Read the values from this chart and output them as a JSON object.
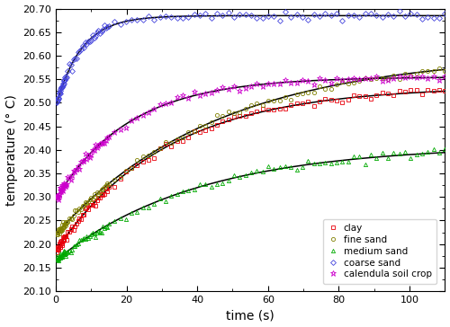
{
  "xlabel": "time (s)",
  "ylabel": "temperature (° C)",
  "xlim": [
    0,
    110
  ],
  "ylim": [
    20.1,
    20.7
  ],
  "yticks": [
    20.1,
    20.15,
    20.2,
    20.25,
    20.3,
    20.35,
    20.4,
    20.45,
    20.5,
    20.55,
    20.6,
    20.65,
    20.7
  ],
  "xticks": [
    0,
    20,
    40,
    60,
    80,
    100
  ],
  "series": [
    {
      "name": "clay",
      "color": "#e8000a",
      "marker": "s",
      "T0": 20.185,
      "Tinf": 20.535,
      "alpha": 0.032
    },
    {
      "name": "fine sand",
      "color": "#808000",
      "marker": "o",
      "T0": 20.22,
      "Tinf": 20.605,
      "alpha": 0.022
    },
    {
      "name": "medium sand",
      "color": "#00aa00",
      "marker": "^",
      "T0": 20.165,
      "Tinf": 20.41,
      "alpha": 0.025
    },
    {
      "name": "coarse sand",
      "color": "#4444dd",
      "marker": "D",
      "T0": 20.49,
      "Tinf": 20.685,
      "alpha": 0.14
    },
    {
      "name": "calendula soil crop",
      "color": "#cc00cc",
      "marker": "*",
      "T0": 20.295,
      "Tinf": 20.555,
      "alpha": 0.048
    }
  ],
  "fit_color": "#000000",
  "noise_scale": 0.004
}
